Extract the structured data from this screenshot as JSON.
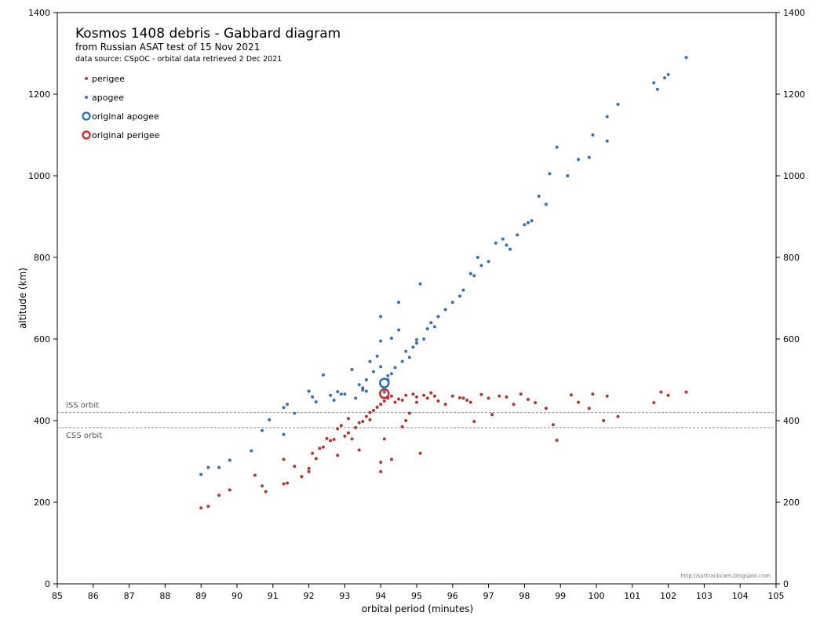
{
  "chart_data": {
    "type": "scatter",
    "title": "Kosmos 1408 debris  - Gabbard diagram",
    "subtitle": "from Russian ASAT test of 15 Nov 2021",
    "source_note": "data source:  CSpOC - orbital data retrieved 2 Dec 2021",
    "credit": "http://sattrackcam.blogspot.com",
    "xlabel": "orbital period (minutes)",
    "ylabel": "altitude (km)",
    "xlim": [
      85,
      105
    ],
    "ylim": [
      0,
      1400
    ],
    "x_ticks": [
      85,
      86,
      87,
      88,
      89,
      90,
      91,
      92,
      93,
      94,
      95,
      96,
      97,
      98,
      99,
      100,
      101,
      102,
      103,
      104,
      105
    ],
    "y_ticks": [
      0,
      200,
      400,
      600,
      800,
      1000,
      1200,
      1400
    ],
    "grid": false,
    "legend_position": "top-left",
    "reference_lines": [
      {
        "label": "ISS orbit",
        "y": 420
      },
      {
        "label": "CSS orbit",
        "y": 383
      }
    ],
    "series": [
      {
        "name": "perigee",
        "color": "#a93a36",
        "points": [
          [
            89.0,
            186
          ],
          [
            89.2,
            190
          ],
          [
            89.5,
            217
          ],
          [
            89.8,
            230
          ],
          [
            90.5,
            266
          ],
          [
            90.7,
            240
          ],
          [
            90.8,
            226
          ],
          [
            91.3,
            305
          ],
          [
            91.3,
            245
          ],
          [
            91.4,
            247
          ],
          [
            91.6,
            288
          ],
          [
            91.8,
            263
          ],
          [
            92.0,
            283
          ],
          [
            92.0,
            275
          ],
          [
            92.1,
            320
          ],
          [
            92.2,
            307
          ],
          [
            92.3,
            332
          ],
          [
            92.4,
            335
          ],
          [
            92.5,
            356
          ],
          [
            92.6,
            351
          ],
          [
            92.7,
            354
          ],
          [
            92.8,
            315
          ],
          [
            92.8,
            380
          ],
          [
            92.9,
            388
          ],
          [
            93.0,
            362
          ],
          [
            93.1,
            370
          ],
          [
            93.1,
            405
          ],
          [
            93.2,
            355
          ],
          [
            93.3,
            383
          ],
          [
            93.4,
            395
          ],
          [
            93.4,
            328
          ],
          [
            93.5,
            398
          ],
          [
            93.6,
            410
          ],
          [
            93.7,
            402
          ],
          [
            93.7,
            420
          ],
          [
            93.8,
            425
          ],
          [
            93.9,
            433
          ],
          [
            94.0,
            440
          ],
          [
            94.0,
            275
          ],
          [
            94.0,
            298
          ],
          [
            94.1,
            355
          ],
          [
            94.1,
            448
          ],
          [
            94.2,
            455
          ],
          [
            94.3,
            460
          ],
          [
            94.4,
            445
          ],
          [
            94.5,
            453
          ],
          [
            94.6,
            450
          ],
          [
            94.7,
            462
          ],
          [
            94.7,
            400
          ],
          [
            94.8,
            418
          ],
          [
            94.9,
            465
          ],
          [
            95.0,
            458
          ],
          [
            95.1,
            320
          ],
          [
            95.2,
            462
          ],
          [
            95.3,
            455
          ],
          [
            95.4,
            468
          ],
          [
            95.5,
            460
          ],
          [
            95.6,
            448
          ],
          [
            95.8,
            440
          ],
          [
            96.0,
            460
          ],
          [
            96.2,
            456
          ],
          [
            96.4,
            450
          ],
          [
            96.5,
            445
          ],
          [
            96.6,
            398
          ],
          [
            96.8,
            464
          ],
          [
            97.0,
            455
          ],
          [
            97.1,
            415
          ],
          [
            97.3,
            460
          ],
          [
            97.5,
            458
          ],
          [
            97.7,
            440
          ],
          [
            97.9,
            465
          ],
          [
            98.1,
            452
          ],
          [
            98.3,
            444
          ],
          [
            98.6,
            430
          ],
          [
            98.8,
            390
          ],
          [
            98.9,
            352
          ],
          [
            99.3,
            463
          ],
          [
            99.5,
            445
          ],
          [
            99.8,
            430
          ],
          [
            99.9,
            465
          ],
          [
            100.2,
            400
          ],
          [
            100.3,
            460
          ],
          [
            100.6,
            410
          ],
          [
            101.6,
            444
          ],
          [
            101.8,
            470
          ],
          [
            102.0,
            462
          ],
          [
            102.5,
            470
          ],
          [
            94.3,
            305
          ],
          [
            94.6,
            385
          ],
          [
            95.0,
            445
          ],
          [
            96.3,
            455
          ]
        ]
      },
      {
        "name": "apogee",
        "color": "#3d6fa8",
        "points": [
          [
            89.0,
            268
          ],
          [
            89.2,
            285
          ],
          [
            89.5,
            285
          ],
          [
            89.8,
            303
          ],
          [
            90.4,
            326
          ],
          [
            90.7,
            376
          ],
          [
            90.9,
            402
          ],
          [
            91.3,
            366
          ],
          [
            91.3,
            432
          ],
          [
            91.4,
            440
          ],
          [
            91.6,
            418
          ],
          [
            92.0,
            472
          ],
          [
            92.1,
            458
          ],
          [
            92.2,
            446
          ],
          [
            92.4,
            512
          ],
          [
            92.6,
            462
          ],
          [
            92.8,
            471
          ],
          [
            92.9,
            465
          ],
          [
            93.0,
            465
          ],
          [
            93.2,
            525
          ],
          [
            93.3,
            455
          ],
          [
            93.4,
            488
          ],
          [
            93.5,
            480
          ],
          [
            93.6,
            500
          ],
          [
            93.6,
            472
          ],
          [
            93.7,
            545
          ],
          [
            93.8,
            520
          ],
          [
            93.9,
            558
          ],
          [
            94.0,
            595
          ],
          [
            94.0,
            655
          ],
          [
            94.0,
            532
          ],
          [
            94.1,
            470
          ],
          [
            94.2,
            500
          ],
          [
            94.3,
            602
          ],
          [
            94.3,
            515
          ],
          [
            94.4,
            530
          ],
          [
            94.5,
            622
          ],
          [
            94.5,
            690
          ],
          [
            94.7,
            570
          ],
          [
            94.8,
            555
          ],
          [
            95.0,
            590
          ],
          [
            95.1,
            735
          ],
          [
            95.2,
            600
          ],
          [
            95.3,
            625
          ],
          [
            95.4,
            640
          ],
          [
            95.6,
            655
          ],
          [
            95.8,
            672
          ],
          [
            96.0,
            690
          ],
          [
            96.2,
            705
          ],
          [
            96.3,
            720
          ],
          [
            96.5,
            760
          ],
          [
            96.7,
            800
          ],
          [
            96.8,
            780
          ],
          [
            97.0,
            790
          ],
          [
            97.2,
            835
          ],
          [
            97.4,
            845
          ],
          [
            97.6,
            820
          ],
          [
            97.8,
            855
          ],
          [
            98.0,
            880
          ],
          [
            98.2,
            890
          ],
          [
            98.4,
            950
          ],
          [
            98.6,
            930
          ],
          [
            98.7,
            1005
          ],
          [
            98.9,
            1070
          ],
          [
            99.2,
            1000
          ],
          [
            99.5,
            1040
          ],
          [
            99.8,
            1045
          ],
          [
            99.9,
            1100
          ],
          [
            100.3,
            1145
          ],
          [
            100.3,
            1085
          ],
          [
            100.6,
            1175
          ],
          [
            101.6,
            1228
          ],
          [
            101.7,
            1212
          ],
          [
            101.9,
            1240
          ],
          [
            102.0,
            1248
          ],
          [
            102.5,
            1290
          ],
          [
            94.6,
            545
          ],
          [
            94.9,
            580
          ],
          [
            95.5,
            630
          ],
          [
            96.6,
            755
          ],
          [
            97.5,
            830
          ],
          [
            98.1,
            885
          ],
          [
            93.5,
            475
          ],
          [
            92.7,
            450
          ],
          [
            94.2,
            510
          ],
          [
            95.0,
            598
          ]
        ]
      },
      {
        "name": "original apogee",
        "color": "#1f6fc0",
        "marker": "ring",
        "points": [
          [
            94.1,
            492
          ]
        ]
      },
      {
        "name": "original perigee",
        "color": "#d42020",
        "marker": "ring",
        "points": [
          [
            94.1,
            466
          ]
        ]
      }
    ]
  }
}
